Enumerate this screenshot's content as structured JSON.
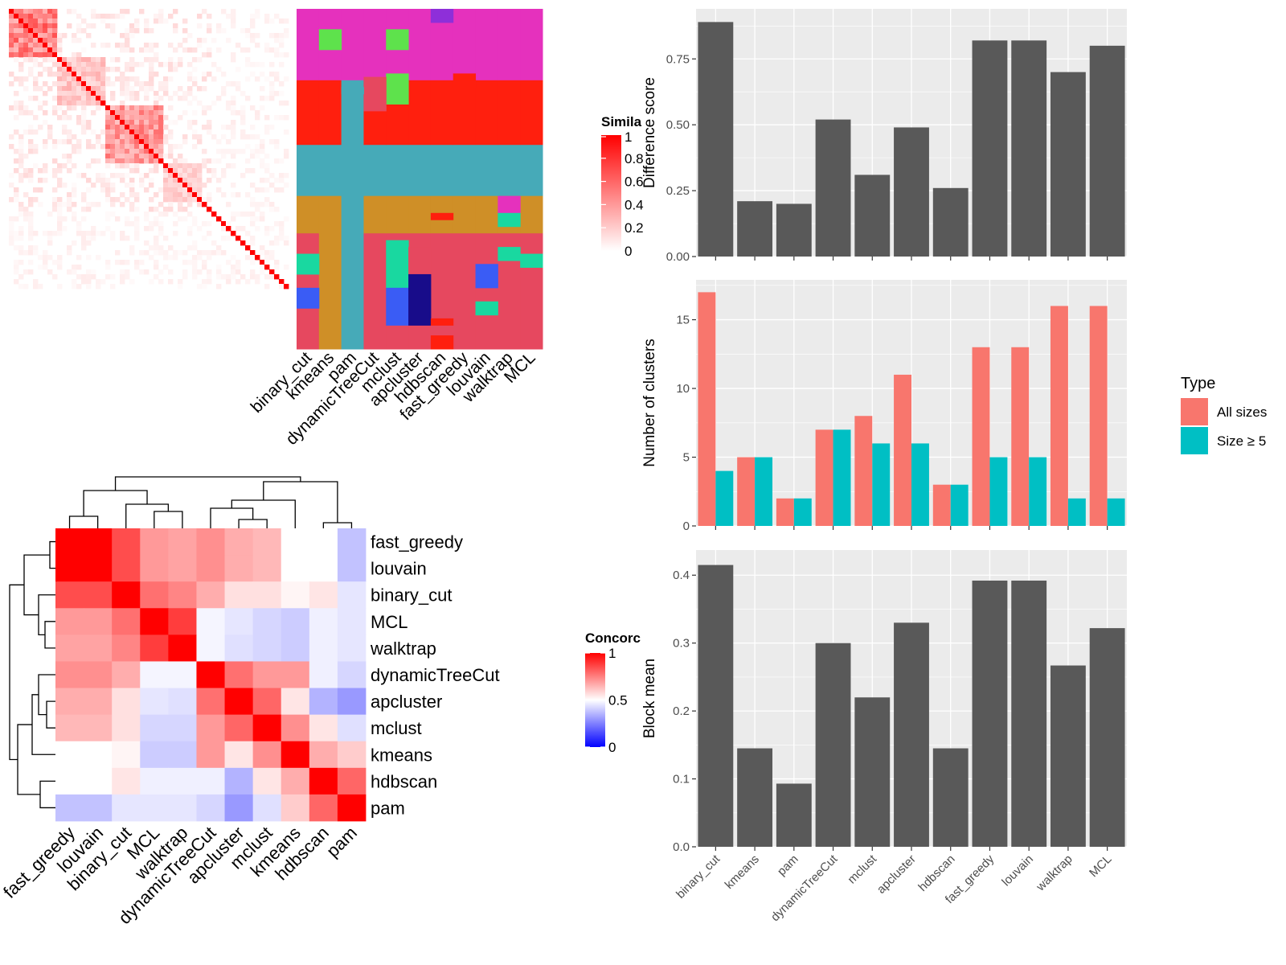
{
  "methods": [
    "binary_cut",
    "kmeans",
    "pam",
    "dynamicTreeCut",
    "mclust",
    "apcluster",
    "hdbscan",
    "fast_greedy",
    "louvain",
    "walktrap",
    "MCL"
  ],
  "similarity_legend": {
    "title": "Simila",
    "ticks": [
      "1",
      "0.8",
      "0.6",
      "0.4",
      "0.2",
      "0"
    ]
  },
  "concordance": {
    "row_labels": [
      "fast_greedy",
      "louvain",
      "binary_cut",
      "MCL",
      "walktrap",
      "dynamicTreeCut",
      "apcluster",
      "mclust",
      "kmeans",
      "hdbscan",
      "pam"
    ],
    "col_labels": [
      "fast_greedy",
      "louvain",
      "binary_cut",
      "MCL",
      "walktrap",
      "dynamicTreeCut",
      "apcluster",
      "mclust",
      "kmeans",
      "hdbscan",
      "pam"
    ],
    "legend": {
      "title": "Concorc",
      "ticks": [
        "1",
        "0.5",
        "0"
      ]
    },
    "matrix": [
      [
        1.0,
        1.0,
        0.85,
        0.7,
        0.68,
        0.72,
        0.66,
        0.64,
        0.5,
        0.5,
        0.38
      ],
      [
        1.0,
        1.0,
        0.85,
        0.7,
        0.68,
        0.72,
        0.66,
        0.64,
        0.5,
        0.5,
        0.38
      ],
      [
        0.85,
        0.85,
        1.0,
        0.78,
        0.74,
        0.66,
        0.56,
        0.56,
        0.52,
        0.55,
        0.45
      ],
      [
        0.7,
        0.7,
        0.78,
        1.0,
        0.88,
        0.48,
        0.45,
        0.42,
        0.4,
        0.47,
        0.45
      ],
      [
        0.68,
        0.68,
        0.74,
        0.88,
        1.0,
        0.48,
        0.44,
        0.42,
        0.4,
        0.47,
        0.45
      ],
      [
        0.72,
        0.72,
        0.66,
        0.48,
        0.48,
        1.0,
        0.78,
        0.7,
        0.7,
        0.47,
        0.42
      ],
      [
        0.66,
        0.66,
        0.56,
        0.45,
        0.44,
        0.78,
        1.0,
        0.8,
        0.55,
        0.35,
        0.3
      ],
      [
        0.64,
        0.64,
        0.56,
        0.42,
        0.42,
        0.7,
        0.8,
        1.0,
        0.72,
        0.55,
        0.44
      ],
      [
        0.5,
        0.5,
        0.52,
        0.4,
        0.4,
        0.7,
        0.55,
        0.72,
        1.0,
        0.66,
        0.6
      ],
      [
        0.5,
        0.5,
        0.55,
        0.47,
        0.47,
        0.47,
        0.35,
        0.55,
        0.66,
        1.0,
        0.8
      ],
      [
        0.38,
        0.38,
        0.45,
        0.45,
        0.45,
        0.42,
        0.3,
        0.44,
        0.6,
        0.8,
        1.0
      ]
    ]
  },
  "chart_data": [
    {
      "type": "bar",
      "categories": [
        "binary_cut",
        "kmeans",
        "pam",
        "dynamicTreeCut",
        "mclust",
        "apcluster",
        "hdbscan",
        "fast_greedy",
        "louvain",
        "walktrap",
        "MCL"
      ],
      "values": [
        0.89,
        0.21,
        0.2,
        0.52,
        0.31,
        0.49,
        0.26,
        0.82,
        0.82,
        0.7,
        0.8
      ],
      "ylabel": "Difference score",
      "ylim": [
        0,
        0.94
      ],
      "yticks": [
        "0.00",
        "0.25",
        "0.50",
        "0.75"
      ],
      "ytick_values": [
        0,
        0.25,
        0.5,
        0.75
      ],
      "color": "#595959"
    },
    {
      "type": "bar",
      "categories": [
        "binary_cut",
        "kmeans",
        "pam",
        "dynamicTreeCut",
        "mclust",
        "apcluster",
        "hdbscan",
        "fast_greedy",
        "louvain",
        "walktrap",
        "MCL"
      ],
      "series": [
        {
          "name": "All sizes",
          "values": [
            17,
            5,
            2,
            7,
            8,
            11,
            3,
            13,
            13,
            16,
            16
          ],
          "color": "#F8766D"
        },
        {
          "name": "Size ≥ 5",
          "values": [
            4,
            5,
            2,
            7,
            6,
            6,
            3,
            5,
            5,
            2,
            2
          ],
          "color": "#00BFC4"
        }
      ],
      "ylabel": "Number of clusters",
      "ylim": [
        0,
        17.9
      ],
      "yticks": [
        "0",
        "5",
        "10",
        "15"
      ],
      "ytick_values": [
        0,
        5,
        10,
        15
      ],
      "legend": {
        "title": "Type",
        "position": "right"
      }
    },
    {
      "type": "bar",
      "categories": [
        "binary_cut",
        "kmeans",
        "pam",
        "dynamicTreeCut",
        "mclust",
        "apcluster",
        "hdbscan",
        "fast_greedy",
        "louvain",
        "walktrap",
        "MCL"
      ],
      "values": [
        0.415,
        0.145,
        0.093,
        0.3,
        0.22,
        0.33,
        0.145,
        0.392,
        0.392,
        0.267,
        0.322
      ],
      "ylabel": "Block mean",
      "ylim": [
        0,
        0.437
      ],
      "yticks": [
        "0.0",
        "0.1",
        "0.2",
        "0.3",
        "0.4"
      ],
      "ytick_values": [
        0,
        0.1,
        0.2,
        0.3,
        0.4
      ],
      "color": "#595959"
    }
  ],
  "colors": {
    "panel_bg": "#EBEBEB",
    "grid": "#FFFFFF",
    "bar": "#595959",
    "heat_high": "#FF0000",
    "heat_mid": "#FFFFFF",
    "heat_low": "#0000FF"
  }
}
